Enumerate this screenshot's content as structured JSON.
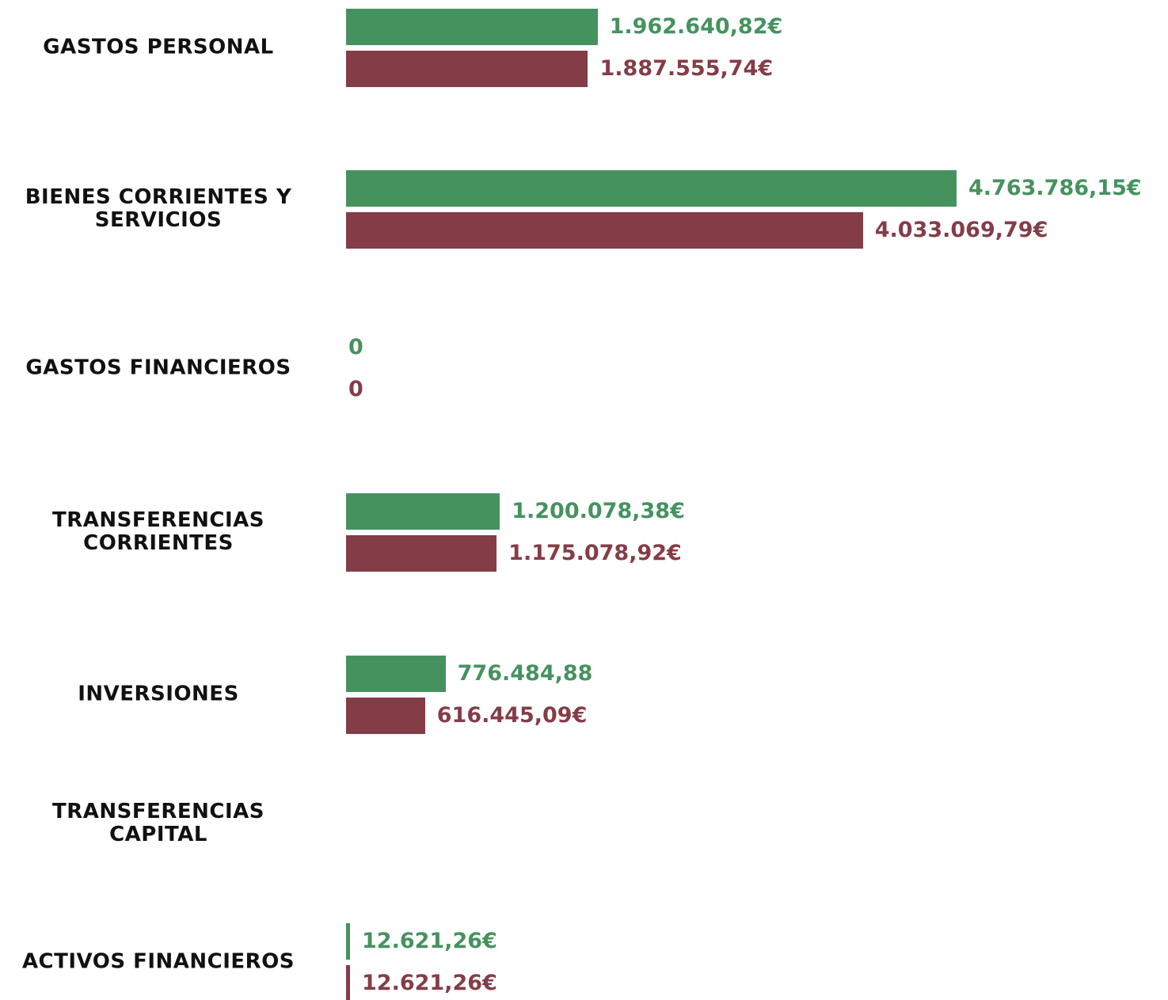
{
  "chart_data": {
    "type": "bar",
    "orientation": "horizontal",
    "categories": [
      "GASTOS PERSONAL",
      "BIENES CORRIENTES Y SERVICIOS",
      "GASTOS FINANCIEROS",
      "TRANSFERENCIAS CORRIENTES",
      "INVERSIONES",
      "TRANSFERENCIAS CAPITAL",
      "ACTIVOS FINANCIEROS"
    ],
    "series": [
      {
        "color": "#46925f",
        "values": [
          1962640.82,
          4763786.15,
          0,
          1200078.38,
          776484.88,
          null,
          12621.26
        ],
        "value_labels": [
          "1.962.640,82€",
          "4.763.786,15€",
          "0",
          "1.200.078,38€",
          "776.484,88",
          null,
          "12.621,26€"
        ]
      },
      {
        "color": "#843d47",
        "values": [
          1887555.74,
          4033069.79,
          0,
          1175078.92,
          616445.09,
          null,
          12621.26
        ],
        "value_labels": [
          "1.887.555,74€",
          "4.033.069,79€",
          "0",
          "1.175.078,92€",
          "616.445,09€",
          null,
          "12.621,26€"
        ]
      }
    ]
  }
}
